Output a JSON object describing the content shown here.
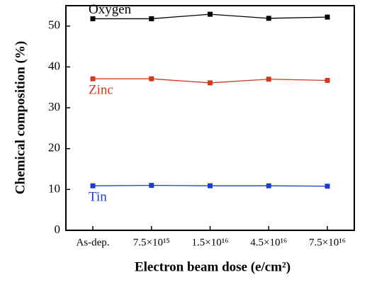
{
  "chart_data": {
    "type": "line",
    "xlabel": "Electron beam dose (e/cm²)",
    "ylabel": "Chemical composition (%)",
    "categories": [
      "As-dep.",
      "7.5×10¹⁵",
      "1.5×10¹⁶",
      "4.5×10¹⁶",
      "7.5×10¹⁶"
    ],
    "series": [
      {
        "name": "Oxygen",
        "color": "#000000",
        "values": [
          51.8,
          51.8,
          52.9,
          51.9,
          52.2
        ]
      },
      {
        "name": "Zinc",
        "color": "#d03a1e",
        "values": [
          37.1,
          37.1,
          36.1,
          37.0,
          36.7
        ]
      },
      {
        "name": "Tin",
        "color": "#1c3bd6",
        "values": [
          10.9,
          11.0,
          10.9,
          10.9,
          10.8
        ]
      }
    ],
    "ylim": [
      0,
      55
    ],
    "yticks": [
      0,
      10,
      20,
      30,
      40,
      50
    ],
    "grid": false
  }
}
